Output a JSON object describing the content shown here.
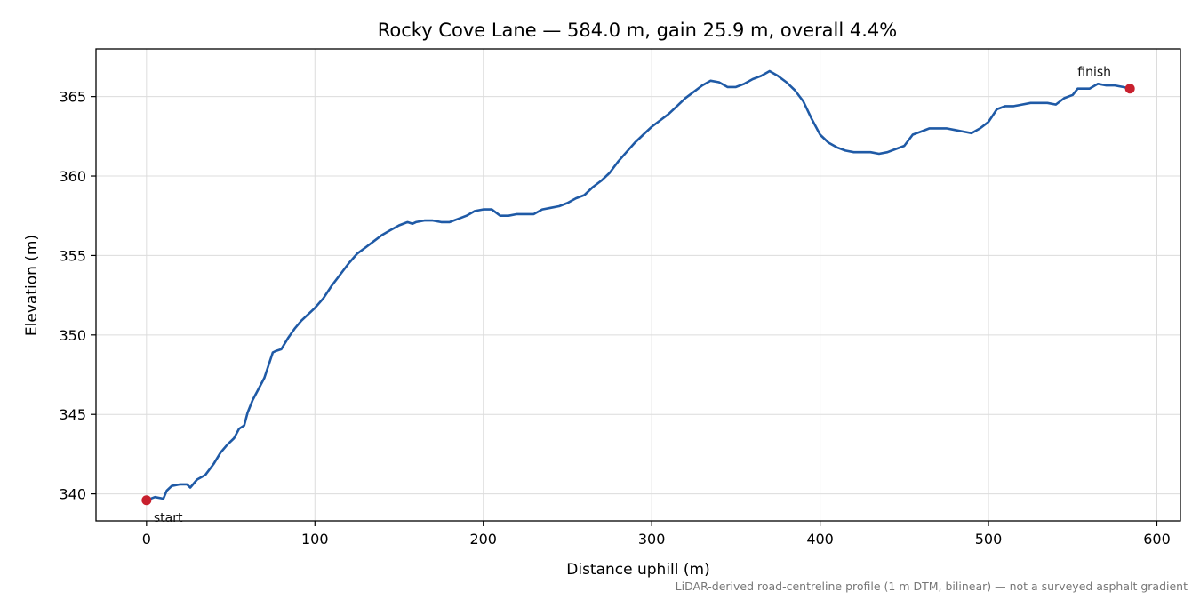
{
  "chart_data": {
    "type": "line",
    "title": "Rocky Cove Lane — 584.0 m, gain 25.9 m, overall 4.4%",
    "xlabel": "Distance uphill (m)",
    "ylabel": "Elevation (m)",
    "xlim": [
      -30,
      614
    ],
    "ylim": [
      338.3,
      368
    ],
    "xticks": [
      0,
      100,
      200,
      300,
      400,
      500,
      600
    ],
    "yticks": [
      340,
      345,
      350,
      355,
      360,
      365
    ],
    "grid": true,
    "line_color": "#1f5aa6",
    "marker_color": "#c8202e",
    "series": [
      {
        "x": [
          0,
          5,
          10,
          12,
          15,
          20,
          24,
          26,
          30,
          35,
          40,
          44,
          48,
          52,
          55,
          58,
          60,
          63,
          66,
          70,
          75,
          77,
          80,
          84,
          88,
          92,
          96,
          100,
          105,
          110,
          115,
          120,
          125,
          130,
          135,
          140,
          145,
          150,
          155,
          158,
          160,
          165,
          170,
          175,
          180,
          185,
          190,
          195,
          200,
          205,
          210,
          215,
          220,
          225,
          230,
          235,
          240,
          245,
          250,
          255,
          260,
          265,
          270,
          275,
          280,
          285,
          290,
          295,
          300,
          305,
          310,
          315,
          320,
          325,
          330,
          335,
          340,
          345,
          350,
          355,
          360,
          365,
          370,
          375,
          380,
          385,
          390,
          395,
          400,
          405,
          410,
          415,
          420,
          425,
          430,
          435,
          440,
          445,
          450,
          455,
          460,
          465,
          470,
          475,
          480,
          485,
          490,
          495,
          500,
          505,
          510,
          515,
          520,
          525,
          530,
          535,
          540,
          545,
          550,
          553,
          556,
          560,
          565,
          570,
          575,
          580,
          584
        ],
        "y": [
          339.6,
          339.8,
          339.7,
          340.2,
          340.5,
          340.6,
          340.6,
          340.4,
          340.9,
          341.2,
          341.9,
          342.6,
          343.1,
          343.5,
          344.1,
          344.3,
          345.1,
          345.9,
          346.5,
          347.3,
          348.9,
          349.0,
          349.1,
          349.8,
          350.4,
          350.9,
          351.3,
          351.7,
          352.3,
          353.1,
          353.8,
          354.5,
          355.1,
          355.5,
          355.9,
          356.3,
          356.6,
          356.9,
          357.1,
          357.0,
          357.1,
          357.2,
          357.2,
          357.1,
          357.1,
          357.3,
          357.5,
          357.8,
          357.9,
          357.9,
          357.5,
          357.5,
          357.6,
          357.6,
          357.6,
          357.9,
          358.0,
          358.1,
          358.3,
          358.6,
          358.8,
          359.3,
          359.7,
          360.2,
          360.9,
          361.5,
          362.1,
          362.6,
          363.1,
          363.5,
          363.9,
          364.4,
          364.9,
          365.3,
          365.7,
          366.0,
          365.9,
          365.6,
          365.6,
          365.8,
          366.1,
          366.3,
          366.6,
          366.3,
          365.9,
          365.4,
          364.7,
          363.6,
          362.6,
          362.1,
          361.8,
          361.6,
          361.5,
          361.5,
          361.5,
          361.4,
          361.5,
          361.7,
          361.9,
          362.6,
          362.8,
          363.0,
          363.0,
          363.0,
          362.9,
          362.8,
          362.7,
          363.0,
          363.4,
          364.2,
          364.4,
          364.4,
          364.5,
          364.6,
          364.6,
          364.6,
          364.5,
          364.9,
          365.1,
          365.5,
          365.5,
          365.5,
          365.8,
          365.7,
          365.7,
          365.6,
          365.5
        ]
      }
    ],
    "annotations": [
      {
        "text": "start",
        "x": 0,
        "y": 339.6
      },
      {
        "text": "finish",
        "x": 584,
        "y": 365.5
      }
    ],
    "footnote": "LiDAR-derived road-centreline profile (1 m DTM, bilinear) — not a surveyed asphalt gradient"
  }
}
